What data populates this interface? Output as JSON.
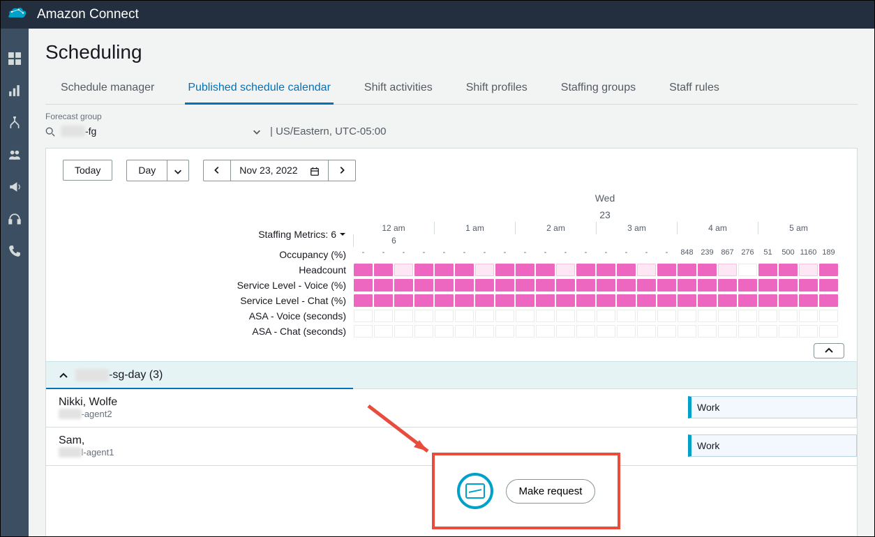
{
  "header": {
    "app_title": "Amazon Connect"
  },
  "page": {
    "title": "Scheduling"
  },
  "tabs": [
    {
      "label": "Schedule manager",
      "active": false
    },
    {
      "label": "Published schedule calendar",
      "active": true
    },
    {
      "label": "Shift activities",
      "active": false
    },
    {
      "label": "Shift profiles",
      "active": false
    },
    {
      "label": "Staffing groups",
      "active": false
    },
    {
      "label": "Staff rules",
      "active": false
    }
  ],
  "forecast_group": {
    "label": "Forecast group",
    "value_suffix": "-fg",
    "timezone": "| US/Eastern, UTC-05:00"
  },
  "toolbar": {
    "today": "Today",
    "view": "Day",
    "date": "Nov 23, 2022"
  },
  "calendar": {
    "day_name": "Wed",
    "day_num": "23",
    "hours": [
      "12 am",
      "1 am",
      "2 am",
      "3 am",
      "4 am",
      "5 am",
      "6"
    ],
    "staffing_title": "Staffing Metrics: 6",
    "metrics": [
      {
        "label": "Occupancy (%)",
        "type": "values",
        "cells": [
          "-",
          "-",
          "-",
          "-",
          "-",
          "-",
          "-",
          "-",
          "-",
          "-",
          "-",
          "-",
          "-",
          "-",
          "-",
          "-",
          "848",
          "239",
          "867",
          "276",
          "51",
          "500",
          "1160",
          "189"
        ]
      },
      {
        "label": "Headcount",
        "type": "blocks",
        "pattern": [
          "s",
          "s",
          "w",
          "s",
          "s",
          "s",
          "w",
          "s",
          "s",
          "s",
          "w",
          "s",
          "s",
          "s",
          "w",
          "s",
          "s",
          "s",
          "w",
          "e",
          "s",
          "s",
          "w",
          "s"
        ]
      },
      {
        "label": "Service Level - Voice (%)",
        "type": "blocks",
        "pattern": [
          "s",
          "s",
          "s",
          "s",
          "s",
          "s",
          "s",
          "s",
          "s",
          "s",
          "s",
          "s",
          "s",
          "s",
          "s",
          "s",
          "s",
          "s",
          "s",
          "s",
          "s",
          "s",
          "s",
          "s"
        ]
      },
      {
        "label": "Service Level - Chat (%)",
        "type": "blocks",
        "pattern": [
          "s",
          "s",
          "s",
          "s",
          "s",
          "s",
          "s",
          "s",
          "s",
          "s",
          "s",
          "s",
          "s",
          "s",
          "s",
          "s",
          "s",
          "s",
          "s",
          "s",
          "s",
          "s",
          "s",
          "s"
        ]
      },
      {
        "label": "ASA - Voice (seconds)",
        "type": "blocks",
        "pattern": [
          "e",
          "e",
          "e",
          "e",
          "e",
          "e",
          "e",
          "e",
          "e",
          "e",
          "e",
          "e",
          "e",
          "e",
          "e",
          "e",
          "e",
          "e",
          "e",
          "e",
          "e",
          "e",
          "e",
          "e"
        ]
      },
      {
        "label": "ASA - Chat (seconds)",
        "type": "blocks",
        "pattern": [
          "e",
          "e",
          "e",
          "e",
          "e",
          "e",
          "e",
          "e",
          "e",
          "e",
          "e",
          "e",
          "e",
          "e",
          "e",
          "e",
          "e",
          "e",
          "e",
          "e",
          "e",
          "e",
          "e",
          "e"
        ]
      }
    ]
  },
  "group": {
    "name_suffix": "-sg-day (3)"
  },
  "agents": [
    {
      "name": "Nikki, Wolfe",
      "sub_suffix": "-agent2",
      "block_label": "Work"
    },
    {
      "name": "Sam,",
      "sub_suffix": "l-agent1",
      "block_label": "Work"
    }
  ],
  "callout": {
    "button": "Make request"
  },
  "colors": {
    "pink_strong": "#ed67c0",
    "pink_weak": "#fde7f5",
    "accent_teal": "#00a1c9",
    "annotation_red": "#e74c3c",
    "header_bg": "#232f3e",
    "sidebar_bg": "#3c4f62"
  }
}
